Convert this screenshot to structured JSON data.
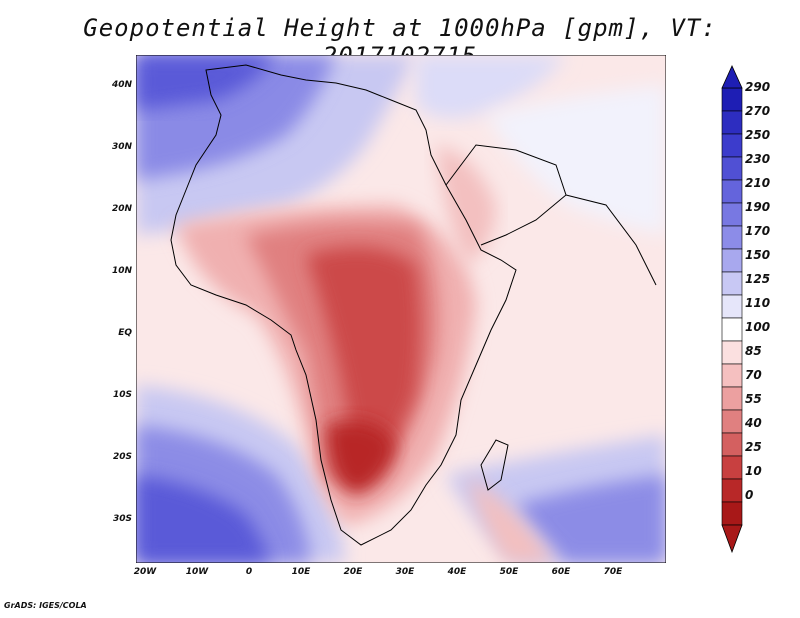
{
  "title": "Geopotential Height at 1000hPa [gpm], VT: 2017102715",
  "map": {
    "variable": "Geopotential Height at 1000hPa",
    "units": "gpm",
    "valid_time": "2017102715",
    "region": "Africa, Arabian Peninsula and Indian Ocean",
    "lon_range": [
      -22,
      80
    ],
    "lat_range": [
      -36,
      45
    ]
  },
  "y_axis_labels": [
    "40N",
    "30N",
    "20N",
    "10N",
    "EQ",
    "10S",
    "20S",
    "30S"
  ],
  "x_axis_labels": [
    "20W",
    "10W",
    "0",
    "10E",
    "20E",
    "30E",
    "40E",
    "50E",
    "60E",
    "70E"
  ],
  "colorbar": {
    "labels": [
      "290",
      "270",
      "250",
      "230",
      "210",
      "190",
      "170",
      "150",
      "125",
      "110",
      "100",
      "85",
      "70",
      "55",
      "40",
      "25",
      "10",
      "0"
    ],
    "colors_top_to_bottom": [
      "#1e1eb4",
      "#2d2dc0",
      "#3c3ccc",
      "#5050d4",
      "#6464dc",
      "#7878e2",
      "#8c8ce8",
      "#a8a8ee",
      "#c8c8f4",
      "#e6e6fa",
      "#ffffff",
      "#fbe0e0",
      "#f5c0c0",
      "#eca0a0",
      "#e08080",
      "#d46060",
      "#c84040",
      "#b82828",
      "#a81818"
    ]
  },
  "credit": "GrADS: IGES/COLA"
}
